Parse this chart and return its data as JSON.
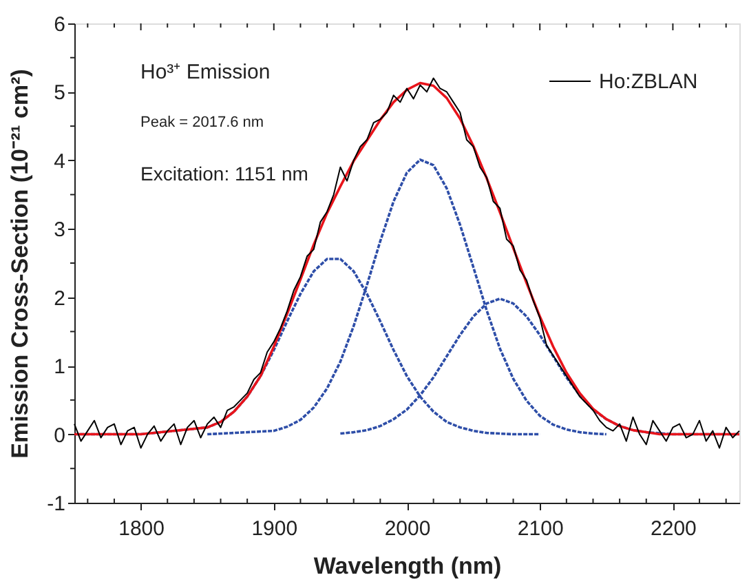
{
  "chart_data": {
    "type": "line",
    "xlabel": "Wavelength (nm)",
    "ylabel": "Emission Cross-Section (10⁻²¹ cm²)",
    "annotations": [
      "Ho³⁺ Emission",
      "Peak = 2017.6 nm",
      "Excitation: 1151 nm"
    ],
    "xlim": [
      1750,
      2250
    ],
    "xticks": [
      {
        "value": 1760,
        "label": null
      },
      {
        "value": 1780,
        "label": null
      },
      1800,
      {
        "value": 1820,
        "label": null
      },
      {
        "value": 1840,
        "label": null
      },
      {
        "value": 1860,
        "label": null
      },
      {
        "value": 1880,
        "label": null
      },
      1900,
      {
        "value": 1920,
        "label": null
      },
      {
        "value": 1940,
        "label": null
      },
      {
        "value": 1960,
        "label": null
      },
      {
        "value": 1980,
        "label": null
      },
      2000,
      {
        "value": 2020,
        "label": null
      },
      {
        "value": 2040,
        "label": null
      },
      {
        "value": 2060,
        "label": null
      },
      {
        "value": 2080,
        "label": null
      },
      2100,
      {
        "value": 2120,
        "label": null
      },
      {
        "value": 2140,
        "label": null
      },
      {
        "value": 2160,
        "label": null
      },
      {
        "value": 2180,
        "label": null
      },
      2200,
      {
        "value": 2220,
        "label": null
      },
      {
        "value": 2240,
        "label": null
      }
    ],
    "ylim": [
      -1,
      6
    ],
    "yticks": [
      -1,
      {
        "value": -0.5,
        "label": null
      },
      0,
      {
        "value": 0.5,
        "label": null
      },
      1,
      {
        "value": 1.5,
        "label": null
      },
      2,
      {
        "value": 2.5,
        "label": null
      },
      3,
      {
        "value": 3.5,
        "label": null
      },
      4,
      {
        "value": 4.5,
        "label": null
      },
      5,
      {
        "value": 5.5,
        "label": null
      },
      6
    ],
    "grid": false,
    "legend": "top right",
    "marker": "none",
    "series": [
      {
        "name": "Ho:ZBLAN",
        "color": "#000000",
        "line_style": "solid",
        "x": [
          1750,
          1755,
          1760,
          1765,
          1770,
          1775,
          1780,
          1785,
          1790,
          1795,
          1800,
          1805,
          1810,
          1815,
          1820,
          1825,
          1830,
          1835,
          1840,
          1845,
          1850,
          1855,
          1860,
          1865,
          1870,
          1875,
          1880,
          1885,
          1890,
          1895,
          1900,
          1905,
          1910,
          1915,
          1920,
          1925,
          1930,
          1935,
          1940,
          1945,
          1950,
          1955,
          1960,
          1965,
          1970,
          1975,
          1980,
          1985,
          1990,
          1995,
          2000,
          2005,
          2010,
          2015,
          2020,
          2025,
          2030,
          2035,
          2040,
          2045,
          2050,
          2055,
          2060,
          2065,
          2070,
          2075,
          2080,
          2085,
          2090,
          2095,
          2100,
          2105,
          2110,
          2115,
          2120,
          2125,
          2130,
          2135,
          2140,
          2145,
          2150,
          2155,
          2160,
          2165,
          2170,
          2175,
          2180,
          2185,
          2190,
          2195,
          2200,
          2205,
          2210,
          2215,
          2220,
          2225,
          2230,
          2235,
          2240,
          2245,
          2250
        ],
        "values": [
          0.15,
          -0.1,
          0.05,
          0.2,
          -0.05,
          0.1,
          0.15,
          -0.15,
          0.05,
          0.1,
          -0.2,
          0.0,
          0.12,
          -0.1,
          0.05,
          0.15,
          -0.15,
          0.1,
          0.2,
          -0.05,
          0.15,
          0.25,
          0.1,
          0.35,
          0.4,
          0.5,
          0.6,
          0.8,
          0.9,
          1.2,
          1.35,
          1.55,
          1.8,
          2.1,
          2.3,
          2.6,
          2.7,
          3.1,
          3.25,
          3.5,
          3.9,
          3.7,
          4.0,
          4.2,
          4.3,
          4.55,
          4.6,
          4.7,
          4.95,
          4.85,
          5.05,
          4.9,
          5.1,
          5.0,
          5.2,
          5.05,
          5.0,
          4.85,
          4.7,
          4.3,
          4.2,
          3.9,
          3.75,
          3.4,
          3.3,
          2.85,
          2.75,
          2.4,
          2.25,
          1.95,
          1.7,
          1.3,
          1.15,
          1.0,
          0.85,
          0.7,
          0.55,
          0.45,
          0.35,
          0.2,
          0.1,
          0.05,
          0.15,
          -0.1,
          0.25,
          0.0,
          -0.15,
          0.2,
          0.05,
          -0.1,
          0.1,
          0.15,
          -0.05,
          0.0,
          0.2,
          -0.1,
          0.05,
          -0.2,
          0.1,
          -0.05,
          0.05
        ]
      },
      {
        "color": "#e8141b",
        "line_style": "solid",
        "x": [
          1750,
          1800,
          1850,
          1860,
          1870,
          1880,
          1890,
          1900,
          1910,
          1920,
          1930,
          1940,
          1950,
          1960,
          1970,
          1980,
          1990,
          2000,
          2010,
          2020,
          2030,
          2040,
          2050,
          2060,
          2070,
          2080,
          2090,
          2100,
          2110,
          2120,
          2130,
          2140,
          2150,
          2160,
          2170,
          2180,
          2190,
          2200,
          2250
        ],
        "values": [
          0.0,
          0.0,
          0.1,
          0.18,
          0.33,
          0.55,
          0.85,
          1.28,
          1.76,
          2.26,
          2.77,
          3.23,
          3.62,
          3.99,
          4.29,
          4.59,
          4.85,
          5.03,
          5.13,
          5.09,
          4.91,
          4.61,
          4.21,
          3.74,
          3.24,
          2.72,
          2.21,
          1.72,
          1.28,
          0.9,
          0.6,
          0.37,
          0.22,
          0.12,
          0.06,
          0.03,
          0.0,
          0.0,
          0.0
        ]
      },
      {
        "color": "#2e4ea8",
        "line_style": "dashed",
        "x": [
          1750,
          1800,
          1850,
          1860,
          1870,
          1880,
          1890,
          1900,
          1910,
          1920,
          1930,
          1940,
          1950,
          1960,
          1970,
          1980,
          1990,
          2000,
          2010,
          2020,
          2030,
          2040,
          2050,
          2060,
          2070,
          2080,
          2100
        ],
        "values": [
          0.0,
          0.0,
          0.1,
          0.18,
          0.33,
          0.55,
          0.85,
          1.23,
          1.65,
          2.05,
          2.38,
          2.56,
          2.56,
          2.38,
          2.05,
          1.65,
          1.23,
          0.85,
          0.55,
          0.33,
          0.18,
          0.1,
          0.05,
          0.02,
          0.01,
          0.0,
          0.0
        ]
      },
      {
        "color": "#2e4ea8",
        "line_style": "dashed",
        "x": [
          1850,
          1900,
          1910,
          1920,
          1930,
          1940,
          1950,
          1960,
          1970,
          1980,
          1990,
          2000,
          2010,
          2020,
          2030,
          2040,
          2050,
          2060,
          2070,
          2080,
          2090,
          2100,
          2110,
          2120,
          2130,
          2140,
          2150
        ],
        "values": [
          0.0,
          0.05,
          0.11,
          0.21,
          0.39,
          0.67,
          1.06,
          1.58,
          2.18,
          2.82,
          3.4,
          3.82,
          4.01,
          3.93,
          3.59,
          3.06,
          2.44,
          1.81,
          1.25,
          0.81,
          0.49,
          0.27,
          0.14,
          0.07,
          0.03,
          0.01,
          0.0
        ]
      },
      {
        "color": "#2e4ea8",
        "line_style": "dashed",
        "x": [
          1950,
          1960,
          1970,
          1980,
          1990,
          2000,
          2010,
          2020,
          2030,
          2040,
          2050,
          2060,
          2070,
          2080,
          2090,
          2100,
          2110,
          2120,
          2130,
          2140,
          2150,
          2160,
          2170,
          2180,
          2200,
          2250
        ],
        "values": [
          0.01,
          0.03,
          0.06,
          0.12,
          0.22,
          0.36,
          0.57,
          0.83,
          1.14,
          1.45,
          1.72,
          1.91,
          1.98,
          1.91,
          1.72,
          1.45,
          1.14,
          0.83,
          0.57,
          0.36,
          0.22,
          0.12,
          0.06,
          0.03,
          0.0,
          0.0
        ]
      }
    ]
  }
}
